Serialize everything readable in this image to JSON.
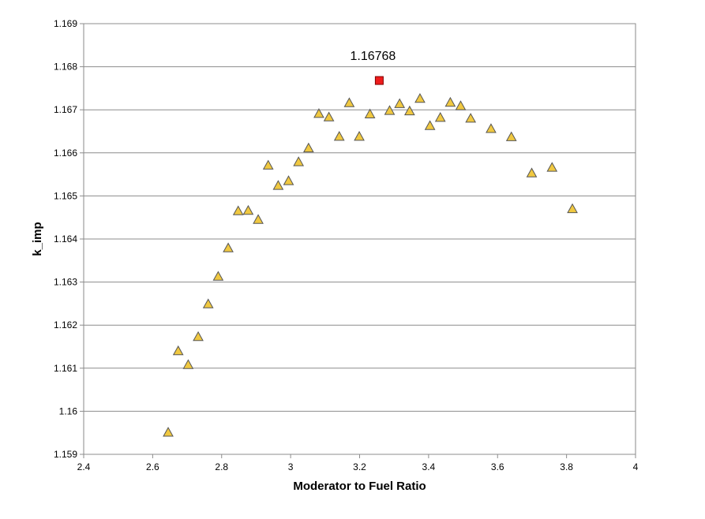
{
  "chart_data": {
    "type": "scatter",
    "xlabel": "Moderator to Fuel Ratio",
    "ylabel": "k_imp",
    "xlim": [
      2.4,
      4.0
    ],
    "ylim": [
      1.159,
      1.169
    ],
    "x_ticks": [
      "2.4",
      "2.6",
      "2.8",
      "3",
      "3.2",
      "3.4",
      "3.6",
      "3.8",
      "4"
    ],
    "y_ticks": [
      "1.159",
      "1.16",
      "1.161",
      "1.162",
      "1.163",
      "1.164",
      "1.165",
      "1.166",
      "1.167",
      "1.168",
      "1.169"
    ],
    "grid": "horizontal",
    "series": [
      {
        "marker": "triangle",
        "color": "#f0c840",
        "edge_color": "#555555",
        "points": [
          [
            2.645,
            1.15951
          ],
          [
            2.674,
            1.1614
          ],
          [
            2.703,
            1.16108
          ],
          [
            2.732,
            1.16173
          ],
          [
            2.761,
            1.16249
          ],
          [
            2.79,
            1.16313
          ],
          [
            2.819,
            1.16379
          ],
          [
            2.848,
            1.16465
          ],
          [
            2.877,
            1.16466
          ],
          [
            2.906,
            1.16445
          ],
          [
            2.935,
            1.16571
          ],
          [
            2.964,
            1.16524
          ],
          [
            2.994,
            1.16535
          ],
          [
            3.023,
            1.16579
          ],
          [
            3.052,
            1.16611
          ],
          [
            3.082,
            1.16691
          ],
          [
            3.111,
            1.16683
          ],
          [
            3.141,
            1.16638
          ],
          [
            3.17,
            1.16716
          ],
          [
            3.199,
            1.16638
          ],
          [
            3.23,
            1.1669
          ],
          [
            3.287,
            1.16698
          ],
          [
            3.316,
            1.16714
          ],
          [
            3.345,
            1.16697
          ],
          [
            3.375,
            1.16726
          ],
          [
            3.404,
            1.16663
          ],
          [
            3.434,
            1.16682
          ],
          [
            3.463,
            1.16717
          ],
          [
            3.493,
            1.16709
          ],
          [
            3.522,
            1.1668
          ],
          [
            3.581,
            1.16656
          ],
          [
            3.64,
            1.16637
          ],
          [
            3.699,
            1.16553
          ],
          [
            3.758,
            1.16566
          ],
          [
            3.817,
            1.1647
          ]
        ]
      },
      {
        "marker": "square",
        "color": "#ee1c1c",
        "edge_color": "#800000",
        "points": [
          [
            3.257,
            1.16768
          ]
        ]
      }
    ],
    "annotations": [
      {
        "text": "1.16768",
        "x": 3.257,
        "y": 1.16768
      }
    ]
  }
}
